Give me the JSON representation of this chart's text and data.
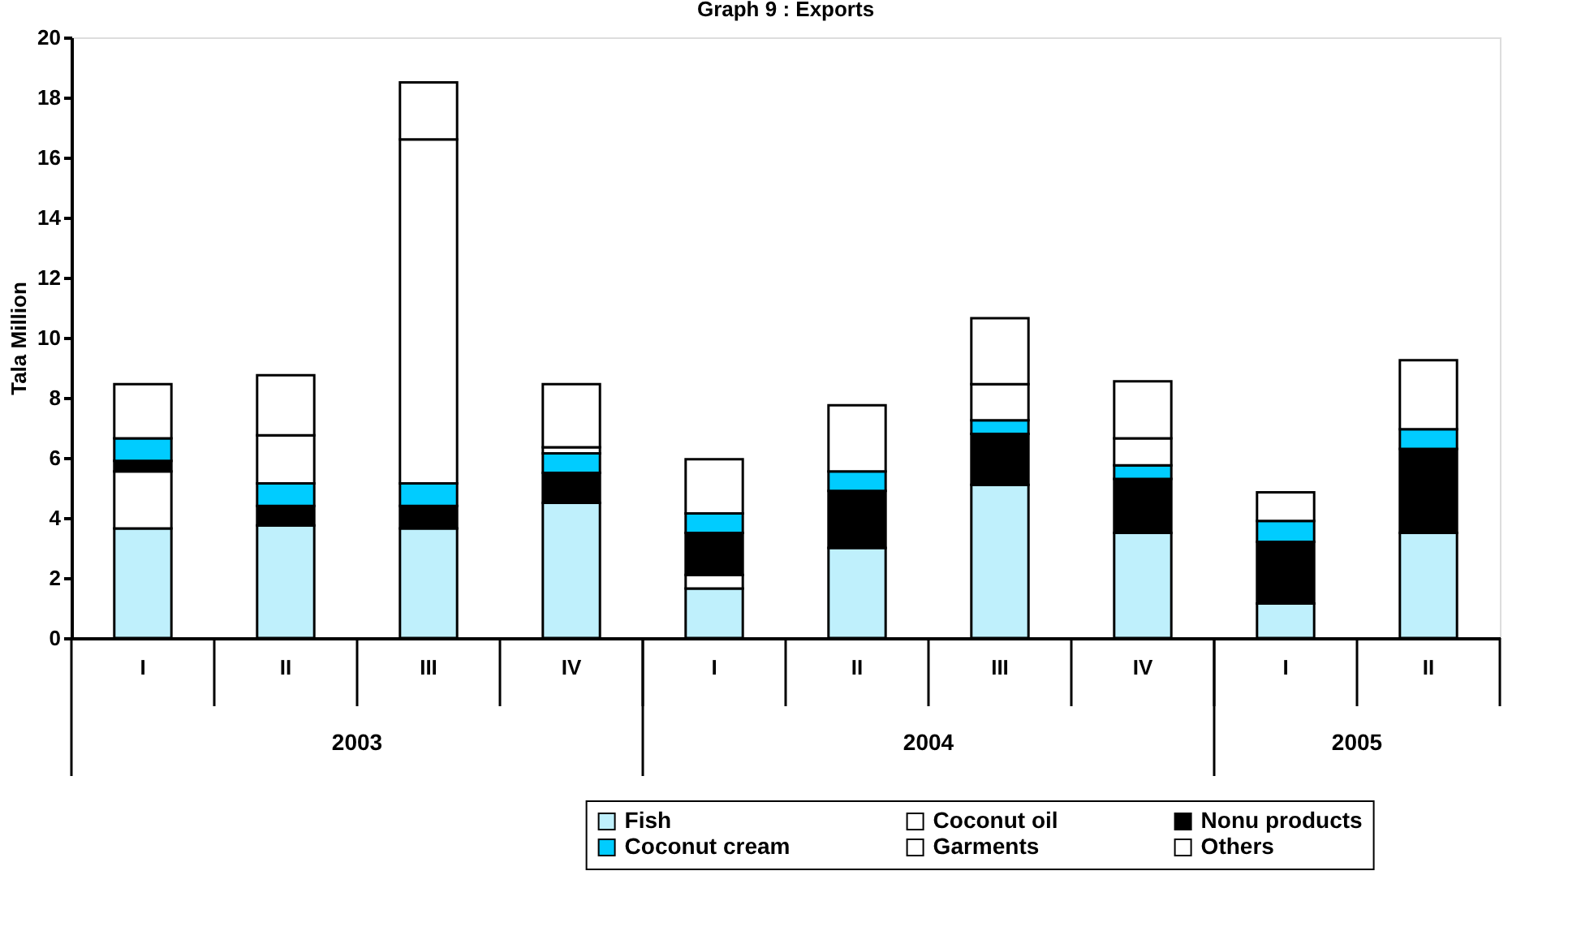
{
  "chart_data": {
    "type": "bar",
    "stacked": true,
    "title": "Graph 9 : Exports",
    "ylabel": "Tala Million",
    "categories": [
      "I",
      "II",
      "III",
      "IV",
      "I",
      "II",
      "III",
      "IV",
      "I",
      "II"
    ],
    "annotations": [
      "2003",
      "2004",
      "2005"
    ],
    "series": [
      {
        "name": "Fish",
        "color": "#bff0fc",
        "values": [
          3.65,
          3.75,
          3.65,
          4.5,
          1.65,
          3.0,
          5.1,
          3.5,
          1.15,
          3.5
        ]
      },
      {
        "name": "Coconut oil",
        "color": "#ffffff",
        "values": [
          1.9,
          null,
          null,
          null,
          0.45,
          null,
          null,
          null,
          null,
          null
        ]
      },
      {
        "name": "Nonu products",
        "color": "#000000",
        "values": [
          0.35,
          0.65,
          0.75,
          1.0,
          1.4,
          1.9,
          1.7,
          1.8,
          2.05,
          2.8
        ]
      },
      {
        "name": "Coconut cream",
        "color": "#00ccff",
        "values": [
          0.75,
          0.75,
          0.75,
          0.65,
          0.65,
          0.65,
          0.45,
          0.45,
          0.7,
          0.65
        ]
      },
      {
        "name": "Garments",
        "color": "#ffffff",
        "values": [
          null,
          1.6,
          11.45,
          0.2,
          null,
          null,
          1.2,
          0.9,
          null,
          null
        ]
      },
      {
        "name": "Others",
        "color": "#ffffff",
        "values": [
          1.8,
          2.0,
          1.9,
          2.1,
          1.8,
          2.2,
          2.2,
          1.9,
          0.95,
          2.3
        ]
      }
    ],
    "ylim": [
      0,
      20
    ],
    "yticks": [
      0,
      2,
      4,
      6,
      8,
      10,
      12,
      14,
      16,
      18,
      20
    ],
    "grid": false,
    "legend": "bottom"
  }
}
